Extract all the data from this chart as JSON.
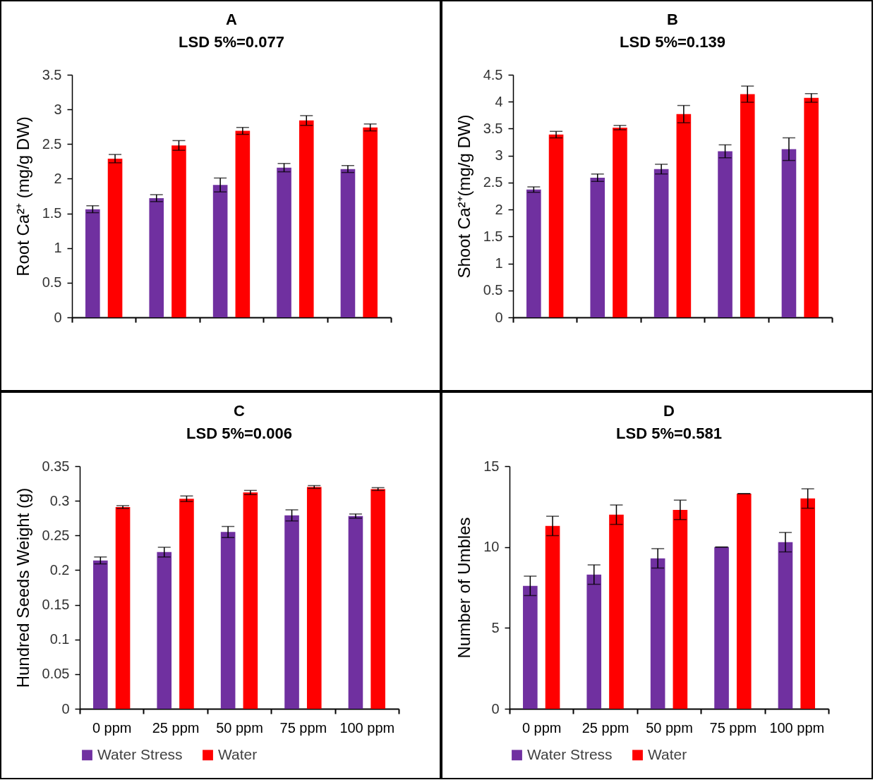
{
  "chart_data": [
    {
      "type": "bar",
      "title": "A",
      "subtitle": "LSD 5%=0.077",
      "ylabel": "Root Ca²⁺ (mg/g DW)",
      "categories": [
        null,
        null,
        null,
        null,
        null
      ],
      "ylim": [
        0,
        3.5
      ],
      "yticks": [
        0,
        0.5,
        1,
        1.5,
        2,
        2.5,
        3,
        3.5
      ],
      "grid": false,
      "legend": false,
      "tick_labels": "y",
      "series": [
        {
          "color": "#7030a0",
          "values": [
            1.56,
            1.72,
            1.91,
            2.16,
            2.14
          ],
          "errors": [
            0.05,
            0.05,
            0.1,
            0.06,
            0.05
          ]
        },
        {
          "color": "#ff0000",
          "values": [
            2.29,
            2.48,
            2.69,
            2.84,
            2.74
          ],
          "errors": [
            0.06,
            0.07,
            0.05,
            0.07,
            0.05
          ]
        }
      ]
    },
    {
      "type": "bar",
      "title": "B",
      "subtitle": "LSD 5%=0.139",
      "ylabel": "Shoot Ca²⁺(mg/g DW)",
      "categories": [
        null,
        null,
        null,
        null,
        null
      ],
      "ylim": [
        0,
        4.5
      ],
      "yticks": [
        0,
        0.5,
        1,
        1.5,
        2,
        2.5,
        3,
        3.5,
        4,
        4.5
      ],
      "grid": false,
      "legend": false,
      "tick_labels": "y",
      "series": [
        {
          "color": "#7030a0",
          "values": [
            2.37,
            2.59,
            2.75,
            3.08,
            3.12
          ],
          "errors": [
            0.05,
            0.07,
            0.09,
            0.12,
            0.21
          ]
        },
        {
          "color": "#ff0000",
          "values": [
            3.39,
            3.52,
            3.77,
            4.14,
            4.07
          ],
          "errors": [
            0.06,
            0.04,
            0.16,
            0.15,
            0.08
          ]
        }
      ]
    },
    {
      "type": "bar",
      "title": "C",
      "subtitle": "LSD 5%=0.006",
      "ylabel": "Hundred Seeds Weight (g)",
      "categories": [
        "0 ppm",
        "25 ppm",
        "50 ppm",
        "75 ppm",
        "100 ppm"
      ],
      "ylim": [
        0,
        0.35
      ],
      "yticks": [
        0,
        0.05,
        0.1,
        0.15,
        0.2,
        0.25,
        0.3,
        0.35
      ],
      "grid": false,
      "legend": "bottom",
      "series": [
        {
          "name": "Water Stress",
          "color": "#7030a0",
          "values": [
            0.214,
            0.226,
            0.255,
            0.279,
            0.278
          ],
          "errors": [
            0.005,
            0.007,
            0.008,
            0.008,
            0.003
          ]
        },
        {
          "name": "Water",
          "color": "#ff0000",
          "values": [
            0.291,
            0.303,
            0.312,
            0.32,
            0.317
          ],
          "errors": [
            0.002,
            0.004,
            0.003,
            0.002,
            0.002
          ]
        }
      ]
    },
    {
      "type": "bar",
      "title": "D",
      "subtitle": "LSD 5%=0.581",
      "ylabel": "Number of Umbles",
      "categories": [
        "0 ppm",
        "25 ppm",
        "50 ppm",
        "75 ppm",
        "100 ppm"
      ],
      "ylim": [
        0,
        15
      ],
      "yticks": [
        0,
        5,
        10,
        15
      ],
      "grid": false,
      "legend": "bottom",
      "series": [
        {
          "name": "Water Stress",
          "color": "#7030a0",
          "values": [
            7.6,
            8.3,
            9.3,
            10.0,
            10.3
          ],
          "errors": [
            0.6,
            0.6,
            0.6,
            0,
            0.6
          ]
        },
        {
          "name": "Water",
          "color": "#ff0000",
          "values": [
            11.3,
            12.0,
            12.3,
            13.3,
            13.0
          ],
          "errors": [
            0.6,
            0.6,
            0.6,
            0,
            0.6
          ]
        }
      ]
    }
  ]
}
